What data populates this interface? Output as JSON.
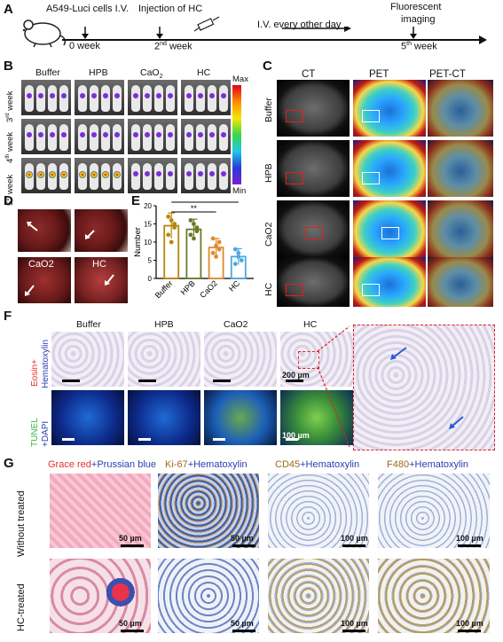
{
  "panelA": {
    "label": "A",
    "cells": "A549-Luci cells I.V.",
    "week0": "0 week",
    "injection": "Injection of HC",
    "week2_num": "2",
    "week2_sup": "nd",
    "week2_unit": "week",
    "iv": "I.V. every other day",
    "imaging1": "Fluorescent",
    "imaging2": "imaging",
    "week5_num": "5",
    "week5_sup": "th",
    "week5_unit": "week"
  },
  "panelB": {
    "label": "B",
    "columns": [
      "Buffer",
      "HPB",
      "CaO",
      "HC"
    ],
    "column_sub": "2",
    "rows": [
      {
        "num": "3",
        "sup": "rd",
        "unit": "week"
      },
      {
        "num": "4",
        "sup": "th",
        "unit": "week"
      },
      {
        "num": "5",
        "sup": "th",
        "unit": "week"
      }
    ],
    "colorbar_max": "Max",
    "colorbar_min": "Min"
  },
  "panelC": {
    "label": "C",
    "columns": [
      "CT",
      "PET",
      "PET-CT"
    ],
    "rows": [
      "Buffer",
      "HPB",
      "CaO2",
      "HC"
    ]
  },
  "panelD": {
    "label": "D",
    "labels": [
      "Buffer",
      "HPB",
      "CaO2",
      "HC"
    ]
  },
  "panelE": {
    "label": "E",
    "ylabel": "Number",
    "yticks": [
      "0",
      "5",
      "10",
      "15",
      "20"
    ],
    "sig1": "***",
    "sig2": "**"
  },
  "chart_data": {
    "type": "bar",
    "categories": [
      "Buffer",
      "HPB",
      "CaO2",
      "HC"
    ],
    "values": [
      14.5,
      13.5,
      8.5,
      6
    ],
    "errors": [
      3.5,
      2.8,
      2.5,
      2.2
    ],
    "points": [
      [
        17,
        16,
        14,
        12,
        10,
        15
      ],
      [
        16,
        15,
        13,
        12,
        11,
        14
      ],
      [
        11,
        9,
        8,
        7,
        6,
        10
      ],
      [
        8,
        6,
        5,
        4,
        7
      ]
    ],
    "colors": [
      "#b8860b",
      "#6b7a2a",
      "#e08a2a",
      "#4aa8e0"
    ],
    "ylabel": "Number",
    "ylim": [
      0,
      20
    ]
  },
  "panelF": {
    "label": "F",
    "columns": [
      "Buffer",
      "HPB",
      "CaO2",
      "HC"
    ],
    "row1a": "Eosin+",
    "row1b": "Hematoxylin",
    "row2a": "TUNEL",
    "row2b": "+DAPI",
    "scale1": "200 µm",
    "scale2": "100 µm"
  },
  "panelG": {
    "label": "G",
    "col1a": "Grace red",
    "col1b": "+Prussian blue",
    "col2a": "Ki-67",
    "col2b": "+Hematoxylin",
    "col3a": "CD45",
    "col3b": "+Hematoxylin",
    "col4a": "F480",
    "col4b": "+Hematoxylin",
    "row1": "Without treated",
    "row2": "HC-treated",
    "scales": [
      "50 µm",
      "50 µm",
      "100 µm",
      "100 µm",
      "50 µm",
      "50 µm",
      "100 µm",
      "100 µm"
    ]
  },
  "colors": {
    "red_label": "#e33030",
    "blue_label": "#2a3fb0",
    "green_label": "#3cb44a",
    "brown_label": "#9a6a18"
  }
}
